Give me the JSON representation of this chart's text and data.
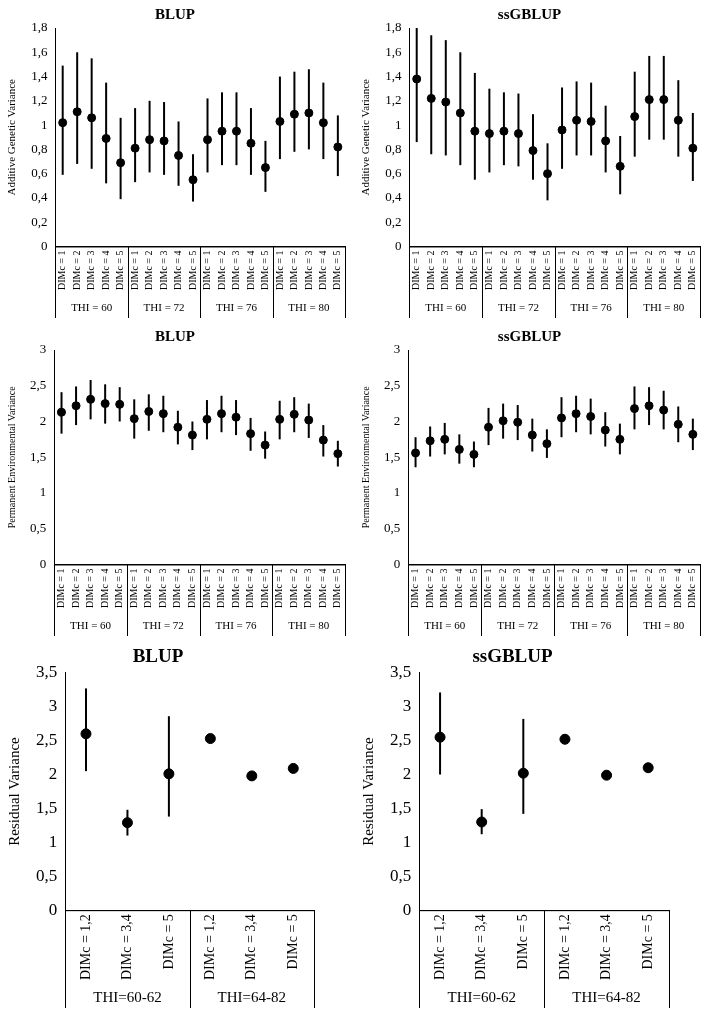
{
  "chart_data": [
    {
      "type": "scatter",
      "title": "BLUP",
      "ylabel": "Additive Genetic Variance",
      "marker": "circle",
      "color": "#000000",
      "categories": [
        "DIMc = 1",
        "DIMc = 2",
        "DIMc = 3",
        "DIMc = 4",
        "DIMc = 5",
        "DIMc = 1",
        "DIMc = 2",
        "DIMc = 3",
        "DIMc = 4",
        "DIMc = 5",
        "DIMc = 1",
        "DIMc = 2",
        "DIMc = 3",
        "DIMc = 4",
        "DIMc = 5",
        "DIMc = 1",
        "DIMc = 2",
        "DIMc = 3",
        "DIMc = 4",
        "DIMc = 5"
      ],
      "values": [
        1.02,
        1.11,
        1.06,
        0.89,
        0.69,
        0.81,
        0.88,
        0.87,
        0.75,
        0.55,
        0.88,
        0.95,
        0.95,
        0.85,
        0.65,
        1.03,
        1.09,
        1.1,
        1.02,
        0.82
      ],
      "errors": [
        [
          0.59,
          1.49
        ],
        [
          0.68,
          1.6
        ],
        [
          0.64,
          1.55
        ],
        [
          0.52,
          1.35
        ],
        [
          0.39,
          1.06
        ],
        [
          0.53,
          1.14
        ],
        [
          0.61,
          1.2
        ],
        [
          0.59,
          1.19
        ],
        [
          0.5,
          1.03
        ],
        [
          0.37,
          0.76
        ],
        [
          0.61,
          1.22
        ],
        [
          0.67,
          1.27
        ],
        [
          0.67,
          1.27
        ],
        [
          0.59,
          1.14
        ],
        [
          0.45,
          0.87
        ],
        [
          0.72,
          1.4
        ],
        [
          0.78,
          1.44
        ],
        [
          0.8,
          1.46
        ],
        [
          0.72,
          1.35
        ],
        [
          0.58,
          1.08
        ]
      ],
      "ylim": [
        0,
        1.8
      ],
      "yticks": [
        0,
        {
          "value": 0.2,
          "label": "0,2"
        },
        {
          "value": 0.4,
          "label": "0,4"
        },
        {
          "value": 0.6,
          "label": "0,6"
        },
        {
          "value": 0.8,
          "label": "0,8"
        },
        1,
        {
          "value": 1.2,
          "label": "1,2"
        },
        {
          "value": 1.4,
          "label": "1,4"
        },
        {
          "value": 1.6,
          "label": "1,6"
        },
        {
          "value": 1.8,
          "label": "1,8"
        }
      ],
      "annotations": [
        "THI = 60",
        "THI = 72",
        "THI = 76",
        "THI = 80"
      ]
    },
    {
      "type": "scatter",
      "title": "ssGBLUP",
      "ylabel": "Additive Genetic Variance",
      "marker": "circle",
      "color": "#000000",
      "categories": [
        "DIMc = 1",
        "DIMc = 2",
        "DIMc = 3",
        "DIMc = 4",
        "DIMc = 5",
        "DIMc = 1",
        "DIMc = 2",
        "DIMc = 3",
        "DIMc = 4",
        "DIMc = 5",
        "DIMc = 1",
        "DIMc = 2",
        "DIMc = 3",
        "DIMc = 4",
        "DIMc = 5",
        "DIMc = 1",
        "DIMc = 2",
        "DIMc = 3",
        "DIMc = 4",
        "DIMc = 5"
      ],
      "values": [
        1.38,
        1.22,
        1.19,
        1.1,
        0.95,
        0.93,
        0.95,
        0.93,
        0.79,
        0.6,
        0.96,
        1.04,
        1.03,
        0.87,
        0.66,
        1.07,
        1.21,
        1.21,
        1.04,
        0.81
      ],
      "errors": [
        [
          0.86,
          1.8
        ],
        [
          0.76,
          1.74
        ],
        [
          0.75,
          1.7
        ],
        [
          0.67,
          1.6
        ],
        [
          0.55,
          1.43
        ],
        [
          0.61,
          1.3
        ],
        [
          0.67,
          1.27
        ],
        [
          0.66,
          1.26
        ],
        [
          0.55,
          1.09
        ],
        [
          0.38,
          0.85
        ],
        [
          0.64,
          1.31
        ],
        [
          0.75,
          1.36
        ],
        [
          0.75,
          1.35
        ],
        [
          0.61,
          1.16
        ],
        [
          0.43,
          0.91
        ],
        [
          0.74,
          1.44
        ],
        [
          0.88,
          1.57
        ],
        [
          0.88,
          1.57
        ],
        [
          0.74,
          1.37
        ],
        [
          0.54,
          1.1
        ]
      ],
      "ylim": [
        0,
        1.8
      ],
      "yticks": [
        0,
        {
          "value": 0.2,
          "label": "0,2"
        },
        {
          "value": 0.4,
          "label": "0,4"
        },
        {
          "value": 0.6,
          "label": "0,6"
        },
        {
          "value": 0.8,
          "label": "0,8"
        },
        1,
        {
          "value": 1.2,
          "label": "1,2"
        },
        {
          "value": 1.4,
          "label": "1,4"
        },
        {
          "value": 1.6,
          "label": "1,6"
        },
        {
          "value": 1.8,
          "label": "1,8"
        }
      ],
      "annotations": [
        "THI = 60",
        "THI = 72",
        "THI = 76",
        "THI = 80"
      ]
    },
    {
      "type": "scatter",
      "title": "BLUP",
      "ylabel": "Permanent Environmental Variance",
      "marker": "circle",
      "color": "#000000",
      "categories": [
        "DIMc = 1",
        "DIMc = 2",
        "DIMc = 3",
        "DIMc = 4",
        "DIMc = 5",
        "DIMc = 1",
        "DIMc = 2",
        "DIMc = 3",
        "DIMc = 4",
        "DIMc = 5",
        "DIMc = 1",
        "DIMc = 2",
        "DIMc = 3",
        "DIMc = 4",
        "DIMc = 5",
        "DIMc = 1",
        "DIMc = 2",
        "DIMc = 3",
        "DIMc = 4",
        "DIMc = 5"
      ],
      "values": [
        2.13,
        2.22,
        2.31,
        2.25,
        2.24,
        2.04,
        2.14,
        2.11,
        1.92,
        1.81,
        2.03,
        2.11,
        2.06,
        1.83,
        1.67,
        2.03,
        2.1,
        2.02,
        1.74,
        1.55
      ],
      "errors": [
        [
          1.83,
          2.41
        ],
        [
          1.95,
          2.49
        ],
        [
          2.03,
          2.58
        ],
        [
          1.97,
          2.52
        ],
        [
          2.0,
          2.48
        ],
        [
          1.76,
          2.31
        ],
        [
          1.87,
          2.38
        ],
        [
          1.85,
          2.36
        ],
        [
          1.68,
          2.15
        ],
        [
          1.6,
          2.0
        ],
        [
          1.75,
          2.3
        ],
        [
          1.85,
          2.36
        ],
        [
          1.81,
          2.3
        ],
        [
          1.59,
          2.05
        ],
        [
          1.48,
          1.86
        ],
        [
          1.75,
          2.29
        ],
        [
          1.85,
          2.34
        ],
        [
          1.77,
          2.25
        ],
        [
          1.51,
          1.95
        ],
        [
          1.37,
          1.73
        ]
      ],
      "ylim": [
        0,
        3
      ],
      "yticks": [
        0,
        {
          "value": 0.5,
          "label": "0,5"
        },
        1,
        {
          "value": 1.5,
          "label": "1,5"
        },
        2,
        {
          "value": 2.5,
          "label": "2,5"
        },
        3
      ],
      "annotations": [
        "THI = 60",
        "THI = 72",
        "THI = 76",
        "THI = 80"
      ]
    },
    {
      "type": "scatter",
      "title": "ssGBLUP",
      "ylabel": "Permanent Environmental Variance",
      "marker": "circle",
      "color": "#000000",
      "categories": [
        "DIMc = 1",
        "DIMc = 2",
        "DIMc = 3",
        "DIMc = 4",
        "DIMc = 5",
        "DIMc = 1",
        "DIMc = 2",
        "DIMc = 3",
        "DIMc = 4",
        "DIMc = 5",
        "DIMc = 1",
        "DIMc = 2",
        "DIMc = 3",
        "DIMc = 4",
        "DIMc = 5",
        "DIMc = 1",
        "DIMc = 2",
        "DIMc = 3",
        "DIMc = 4",
        "DIMc = 5"
      ],
      "values": [
        1.56,
        1.73,
        1.75,
        1.61,
        1.54,
        1.92,
        2.01,
        1.99,
        1.81,
        1.69,
        2.05,
        2.11,
        2.07,
        1.88,
        1.75,
        2.18,
        2.22,
        2.16,
        1.96,
        1.82
      ],
      "errors": [
        [
          1.36,
          1.78
        ],
        [
          1.51,
          1.93
        ],
        [
          1.54,
          1.98
        ],
        [
          1.41,
          1.82
        ],
        [
          1.36,
          1.72
        ],
        [
          1.67,
          2.19
        ],
        [
          1.76,
          2.25
        ],
        [
          1.74,
          2.23
        ],
        [
          1.58,
          2.04
        ],
        [
          1.49,
          1.89
        ],
        [
          1.78,
          2.34
        ],
        [
          1.85,
          2.36
        ],
        [
          1.82,
          2.32
        ],
        [
          1.65,
          2.13
        ],
        [
          1.54,
          1.97
        ],
        [
          1.89,
          2.49
        ],
        [
          1.95,
          2.48
        ],
        [
          1.89,
          2.43
        ],
        [
          1.71,
          2.21
        ],
        [
          1.6,
          2.04
        ]
      ],
      "ylim": [
        0,
        3
      ],
      "yticks": [
        0,
        {
          "value": 0.5,
          "label": "0,5"
        },
        1,
        {
          "value": 1.5,
          "label": "1,5"
        },
        2,
        {
          "value": 2.5,
          "label": "2,5"
        },
        3
      ],
      "annotations": [
        "THI = 60",
        "THI = 72",
        "THI = 76",
        "THI = 80"
      ]
    },
    {
      "type": "scatter",
      "title": "BLUP",
      "ylabel": "Residual Variance",
      "marker": "circle",
      "color": "#000000",
      "categories": [
        "DIMc = 1,2",
        "DIMc = 3,4",
        "DIMc = 5",
        "DIMc = 1,2",
        "DIMc = 3,4",
        "DIMc = 5"
      ],
      "values": [
        2.6,
        1.29,
        2.01,
        2.53,
        1.98,
        2.09
      ],
      "errors": [
        [
          2.05,
          3.27
        ],
        [
          1.1,
          1.48
        ],
        [
          1.38,
          2.86
        ],
        null,
        null,
        null
      ],
      "ylim": [
        0,
        3.5
      ],
      "yticks": [
        0,
        {
          "value": 0.5,
          "label": "0,5"
        },
        1,
        {
          "value": 1.5,
          "label": "1,5"
        },
        2,
        {
          "value": 2.5,
          "label": "2,5"
        },
        3,
        {
          "value": 3.5,
          "label": "3,5"
        }
      ],
      "annotations": [
        "THI=60-62",
        "THI=64-82"
      ]
    },
    {
      "type": "scatter",
      "title": "ssGBLUP",
      "ylabel": "Residual Variance",
      "marker": "circle",
      "color": "#000000",
      "categories": [
        "DIMc = 1,2",
        "DIMc = 3,4",
        "DIMc = 5",
        "DIMc = 1,2",
        "DIMc = 3,4",
        "DIMc = 5"
      ],
      "values": [
        2.55,
        1.3,
        2.02,
        2.52,
        1.99,
        2.1
      ],
      "errors": [
        [
          2.0,
          3.21
        ],
        [
          1.12,
          1.49
        ],
        [
          1.42,
          2.82
        ],
        null,
        null,
        null
      ],
      "ylim": [
        0,
        3.5
      ],
      "yticks": [
        0,
        {
          "value": 0.5,
          "label": "0,5"
        },
        1,
        {
          "value": 1.5,
          "label": "1,5"
        },
        2,
        {
          "value": 2.5,
          "label": "2,5"
        },
        3,
        {
          "value": 3.5,
          "label": "3,5"
        }
      ],
      "annotations": [
        "THI=60-62",
        "THI=64-82"
      ]
    }
  ]
}
